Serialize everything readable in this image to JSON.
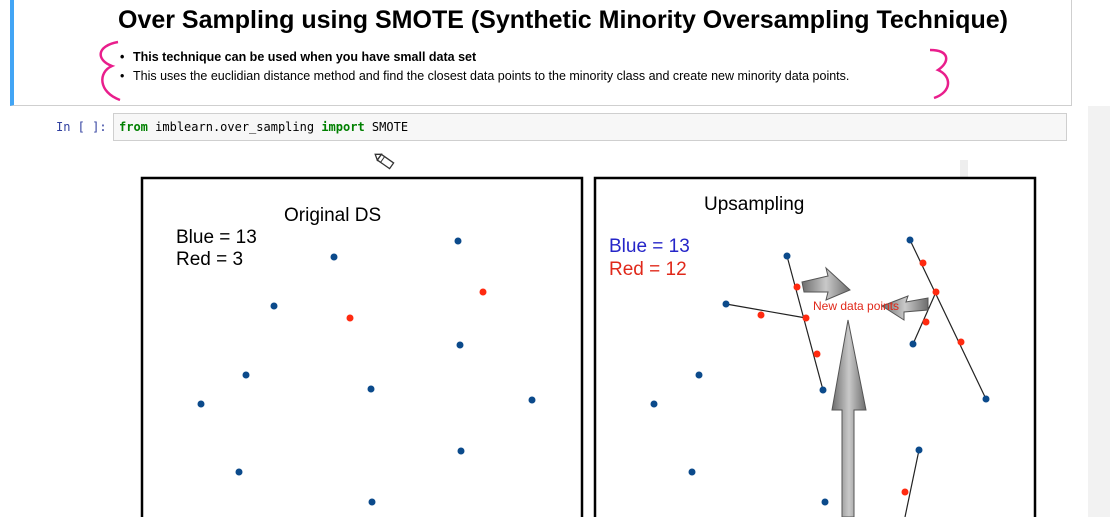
{
  "markdown": {
    "title": "Over Sampling using SMOTE (Synthetic Minority Oversampling Technique)",
    "bullets": [
      "This technique can be used when you have small data set",
      "This uses the euclidian distance method and find the closest data points to the minority class and create new minority data points."
    ]
  },
  "code_cell": {
    "prompt": "In [ ]:",
    "kw_from": "from",
    "module": "imblearn.over_sampling",
    "kw_import": "import",
    "name": "SMOTE"
  },
  "slide": {
    "left_panel": {
      "title": "Original DS",
      "blue_label": "Blue = 13",
      "red_label": "Red = 3"
    },
    "right_panel": {
      "title": "Upsampling",
      "blue_label": "Blue = 13",
      "red_label": "Red = 12",
      "annotation": "New data points"
    }
  },
  "colors": {
    "accent": "#42a5f5",
    "blue_point": "#0b4a8b",
    "red_point": "#ff2a10",
    "annotation_pink": "#e91e8c"
  }
}
